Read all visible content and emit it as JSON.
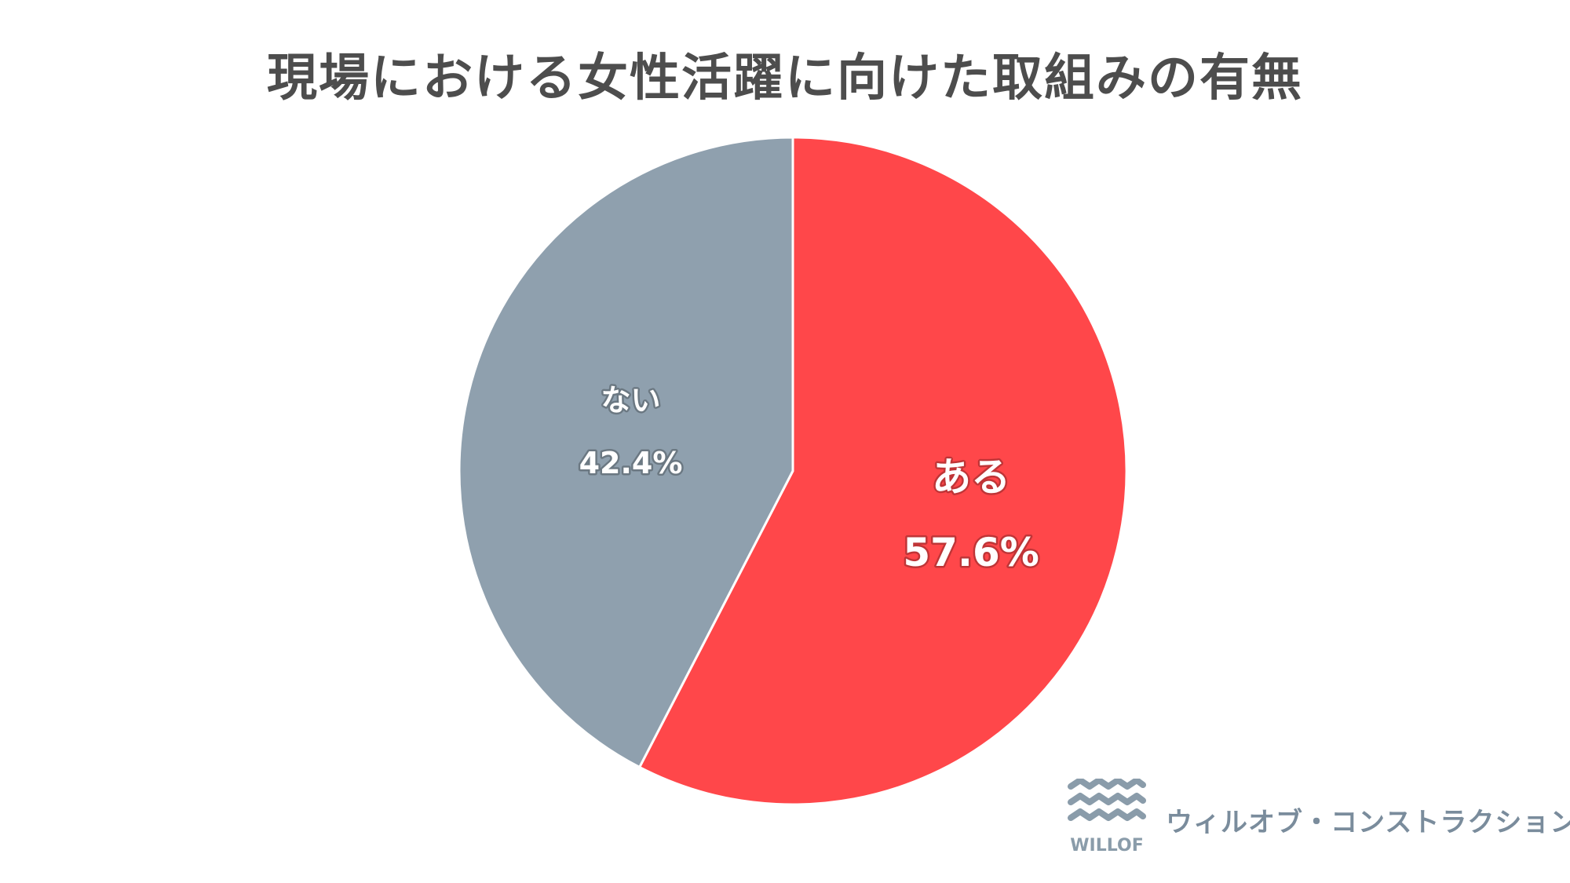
{
  "chart_data": {
    "type": "pie",
    "title": "現場における女性活躍に向けた取組みの有無",
    "slices": [
      {
        "label": "ある",
        "value": 57.6,
        "value_label": "57.6%",
        "color": "#ff474a"
      },
      {
        "label": "ない",
        "value": 42.4,
        "value_label": "42.4%",
        "color": "#8fa0ae"
      }
    ],
    "start_angle": "12 o'clock",
    "direction": "clockwise",
    "legend": "none"
  },
  "brand": {
    "logo_text": "WILLOF",
    "name": "ウィルオブ・コンストラクション",
    "logo_color": "#8a9caa",
    "name_color": "#7a8c9c"
  }
}
